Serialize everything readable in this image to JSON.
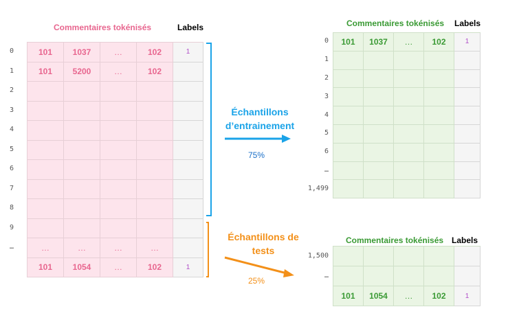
{
  "source": {
    "tokens_header": "Commentaires tokénisés",
    "labels_header": "Labels",
    "row_indices": [
      "0",
      "1",
      "2",
      "3",
      "4",
      "5",
      "6",
      "7",
      "8",
      "9",
      "…",
      ""
    ],
    "rows": [
      [
        "101",
        "1037",
        "…",
        "102",
        "1"
      ],
      [
        "101",
        "5200",
        "…",
        "102",
        ""
      ],
      [
        "",
        "",
        "",
        "",
        ""
      ],
      [
        "",
        "",
        "",
        "",
        ""
      ],
      [
        "",
        "",
        "",
        "",
        ""
      ],
      [
        "",
        "",
        "",
        "",
        ""
      ],
      [
        "",
        "",
        "",
        "",
        ""
      ],
      [
        "",
        "",
        "",
        "",
        ""
      ],
      [
        "",
        "",
        "",
        "",
        ""
      ],
      [
        "",
        "",
        "",
        "",
        ""
      ],
      [
        "…",
        "…",
        "…",
        "…",
        ""
      ],
      [
        "101",
        "1054",
        "…",
        "102",
        "1"
      ]
    ]
  },
  "train": {
    "label": "Échantillons d’entrainement",
    "percent": "75%",
    "tokens_header": "Commentaires tokénisés",
    "labels_header": "Labels",
    "row_indices": [
      "0",
      "1",
      "2",
      "3",
      "4",
      "5",
      "6",
      "…",
      "1,499"
    ],
    "rows": [
      [
        "101",
        "1037",
        "…",
        "102",
        "1"
      ],
      [
        "",
        "",
        "",
        "",
        ""
      ],
      [
        "",
        "",
        "",
        "",
        ""
      ],
      [
        "",
        "",
        "",
        "",
        ""
      ],
      [
        "",
        "",
        "",
        "",
        ""
      ],
      [
        "",
        "",
        "",
        "",
        ""
      ],
      [
        "",
        "",
        "",
        "",
        ""
      ],
      [
        "",
        "",
        "",
        "",
        ""
      ],
      [
        "",
        "",
        "",
        "",
        ""
      ]
    ]
  },
  "test": {
    "label": "Échantillons de tests",
    "percent": "25%",
    "tokens_header": "Commentaires tokénisés",
    "labels_header": "Labels",
    "row_indices": [
      "1,500",
      "…",
      ""
    ],
    "rows": [
      [
        "",
        "",
        "",
        "",
        ""
      ],
      [
        "",
        "",
        "",
        "",
        ""
      ],
      [
        "101",
        "1054",
        "…",
        "102",
        "1"
      ]
    ]
  },
  "colors": {
    "pink_text": "#e8668f",
    "green_text": "#3a9a34",
    "blue_accent": "#1aa3e8",
    "orange_accent": "#f39019"
  }
}
